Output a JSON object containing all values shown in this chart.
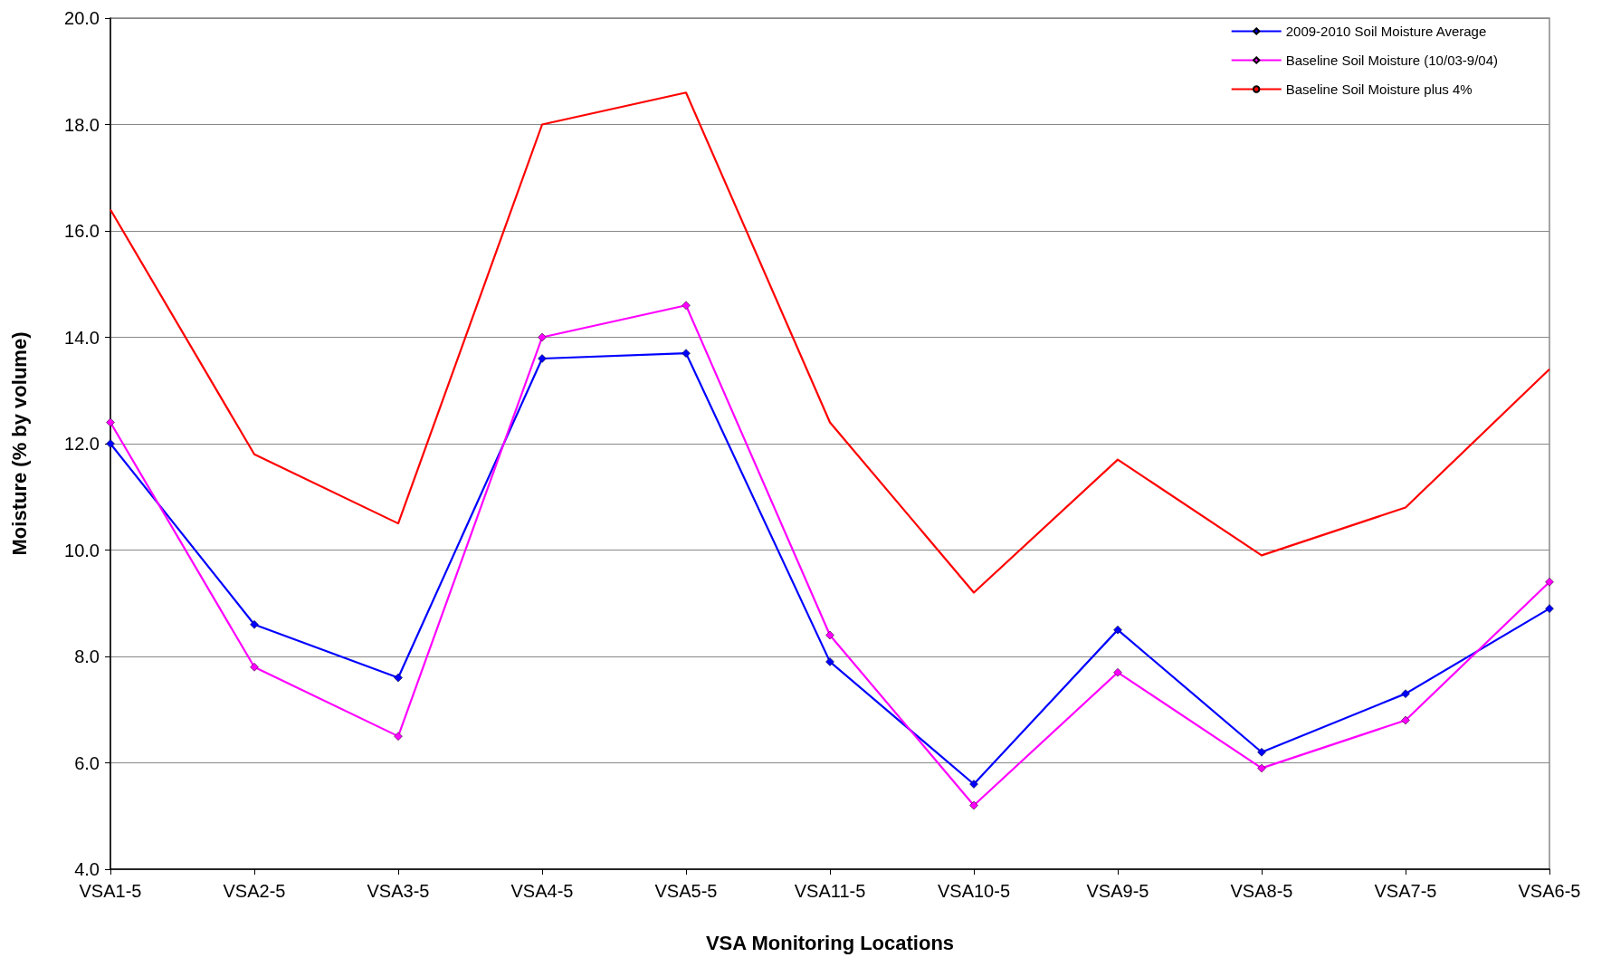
{
  "chart_data": {
    "type": "line",
    "xlabel": "VSA Monitoring Locations",
    "ylabel": "Moisture (% by volume)",
    "categories": [
      "VSA1-5",
      "VSA2-5",
      "VSA3-5",
      "VSA4-5",
      "VSA5-5",
      "VSA11-5",
      "VSA10-5",
      "VSA9-5",
      "VSA8-5",
      "VSA7-5",
      "VSA6-5"
    ],
    "series": [
      {
        "name": "2009-2010 Soil Moisture Average",
        "color": "#0000ff",
        "marker": "diamond",
        "values": [
          12.0,
          8.6,
          7.6,
          13.6,
          13.7,
          7.9,
          5.6,
          8.5,
          6.2,
          7.3,
          8.9
        ]
      },
      {
        "name": "Baseline Soil Moisture (10/03-9/04)",
        "color": "#ff00ff",
        "marker": "diamond",
        "values": [
          12.4,
          7.8,
          6.5,
          14.0,
          14.6,
          8.4,
          5.2,
          7.7,
          5.9,
          6.8,
          9.4
        ]
      },
      {
        "name": "Baseline Soil Moisture plus 4%",
        "color": "#ff0000",
        "marker": "none",
        "values": [
          16.4,
          11.8,
          10.5,
          18.0,
          18.6,
          12.4,
          9.2,
          11.7,
          9.9,
          10.8,
          13.4
        ]
      }
    ],
    "ylim": [
      4,
      20
    ],
    "yticks": [
      {
        "value": 4,
        "label": "4.0"
      },
      {
        "value": 6,
        "label": "6.0"
      },
      {
        "value": 8,
        "label": "8.0"
      },
      {
        "value": 10,
        "label": "10.0"
      },
      {
        "value": 12,
        "label": "12.0"
      },
      {
        "value": 14,
        "label": "14.0"
      },
      {
        "value": 16,
        "label": "16.0"
      },
      {
        "value": 18,
        "label": "18.0"
      },
      {
        "value": 20,
        "label": "20.0"
      }
    ],
    "grid": "y",
    "legend": "top right",
    "line_style": "solid"
  }
}
